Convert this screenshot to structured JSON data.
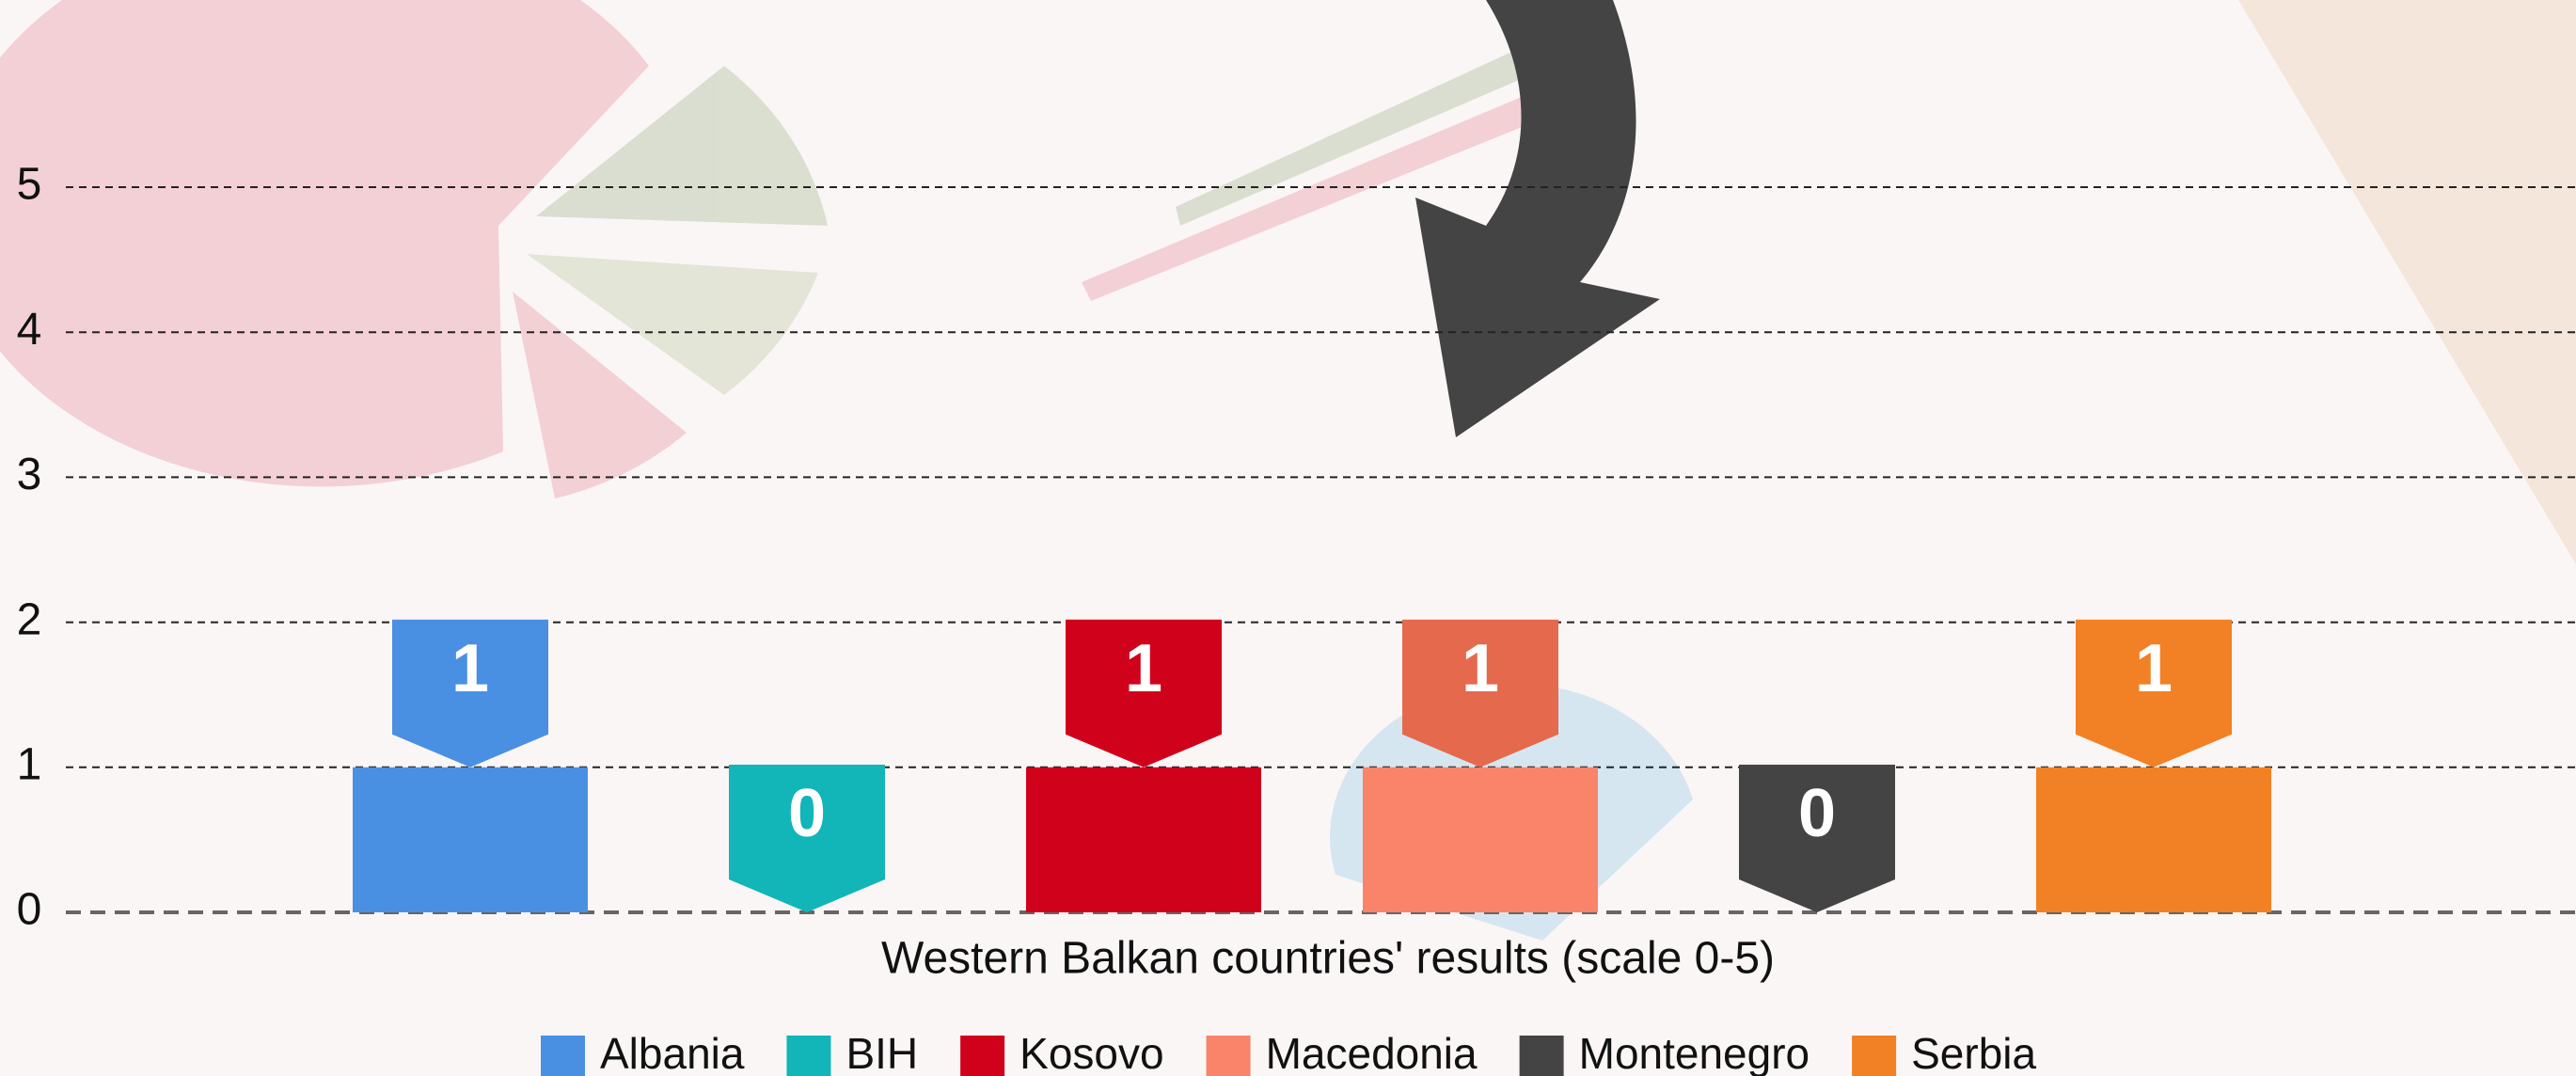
{
  "chart_data": {
    "type": "bar",
    "x_label": "Western Balkan countries' results (scale 0-5)",
    "categories": [
      null
    ],
    "series": [
      {
        "name": "Albania",
        "color": "#4a90e2",
        "label_color": "#4a90e2",
        "values": [
          1
        ]
      },
      {
        "name": "BIH",
        "color": "#12b5b8",
        "label_color": "#12b5b8",
        "values": [
          0
        ]
      },
      {
        "name": "Kosovo",
        "color": "#d0021b",
        "label_color": "#d0021b",
        "values": [
          1
        ]
      },
      {
        "name": "Macedonia",
        "color": "#f98469",
        "label_color": "#e5694d",
        "values": [
          1
        ]
      },
      {
        "name": "Montenegro",
        "color": "#444444",
        "label_color": "#444444",
        "values": [
          0
        ]
      },
      {
        "name": "Serbia",
        "color": "#f28024",
        "label_color": "#f28024",
        "values": [
          1
        ]
      }
    ],
    "ylim": [
      0,
      5
    ],
    "yticks": [
      0,
      1,
      2,
      3,
      4,
      5
    ],
    "grid": true,
    "legend": "bottom"
  }
}
